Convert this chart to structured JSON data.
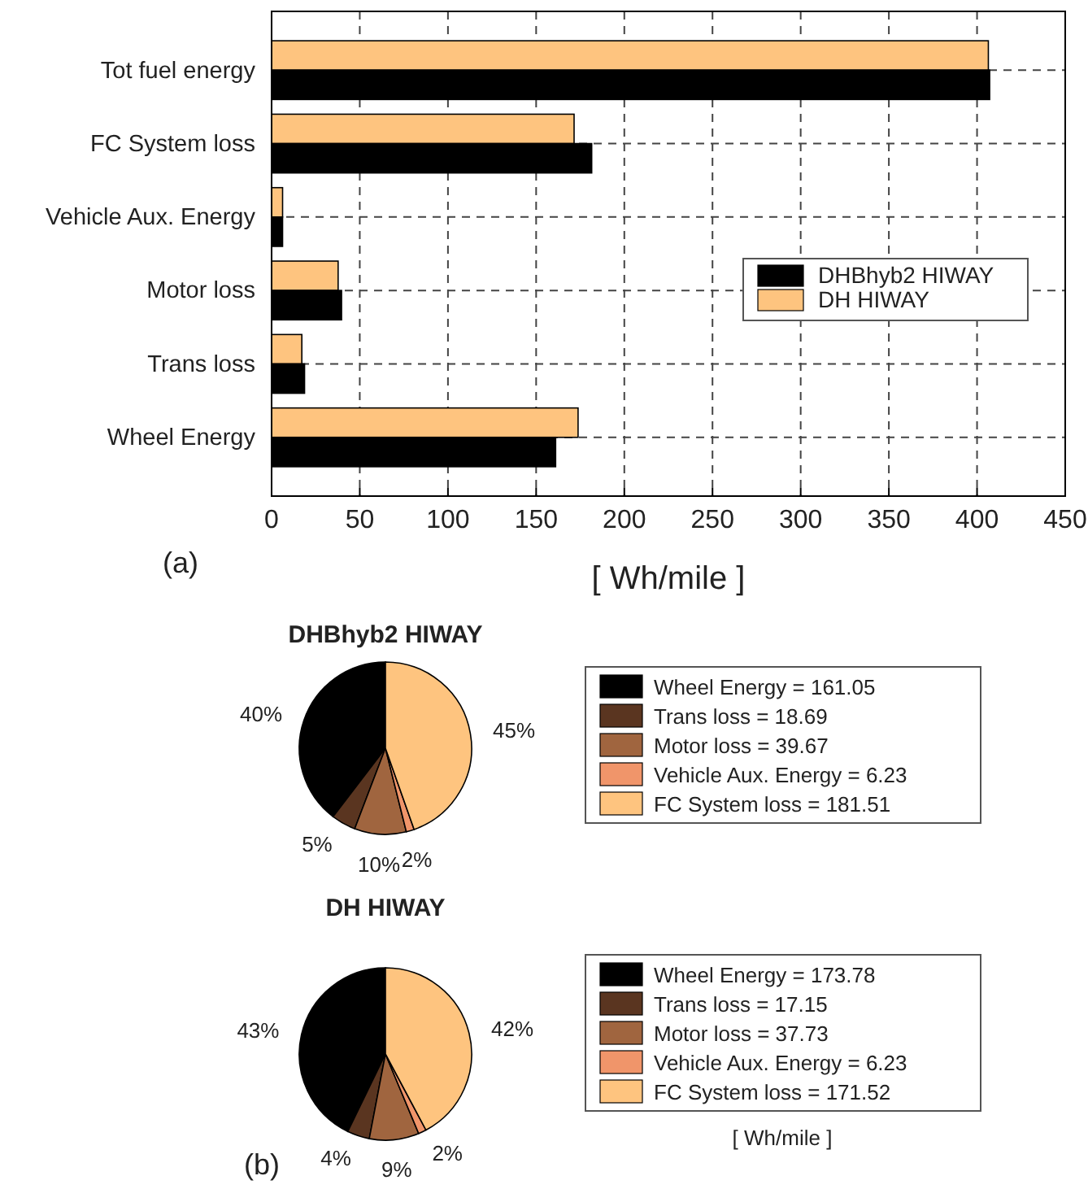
{
  "chart_data": [
    {
      "type": "bar",
      "orientation": "horizontal",
      "categories": [
        "Tot fuel energy",
        "FC System loss",
        "Vehicle Aux. Energy",
        "Motor loss",
        "Trans loss",
        "Wheel Energy"
      ],
      "series": [
        {
          "name": "DH HIWAY",
          "color": "#fec47f",
          "values": [
            406.41,
            171.52,
            6.23,
            37.73,
            17.15,
            173.78
          ]
        },
        {
          "name": "DHBhyb2 HIWAY",
          "color": "#000000",
          "values": [
            407.15,
            181.51,
            6.23,
            39.67,
            18.69,
            161.05
          ]
        }
      ],
      "xlim": [
        0,
        450
      ],
      "xticks": [
        0,
        50,
        100,
        150,
        200,
        250,
        300,
        350,
        400,
        450
      ],
      "xlabel": "[ Wh/mile ]",
      "grid": true,
      "line_style": "dashed",
      "legend": "right",
      "annotations": [
        "(a)"
      ]
    },
    {
      "type": "pie",
      "title": "DHBhyb2 HIWAY",
      "categories": [
        "Wheel Energy = 161.05",
        "Trans loss = 18.69",
        "Motor loss = 39.67",
        "Vehicle Aux. Energy = 6.23",
        "FC System loss = 181.51"
      ],
      "values": [
        39.6,
        4.6,
        9.7,
        1.5,
        44.6
      ],
      "colors": [
        "#000000",
        "#5a3520",
        "#a0653f",
        "#f0956a",
        "#fec47f"
      ],
      "value_labels": [
        "40%",
        "5%",
        "10%",
        "2%",
        "45%"
      ],
      "legend": "right"
    },
    {
      "type": "pie",
      "title": "DH HIWAY",
      "categories": [
        "Wheel Energy = 173.78",
        "Trans loss = 17.15",
        "Motor loss = 37.73",
        "Vehicle Aux. Energy = 6.23",
        "FC System loss = 171.52"
      ],
      "values": [
        42.8,
        4.2,
        9.3,
        1.5,
        42.2
      ],
      "colors": [
        "#000000",
        "#5a3520",
        "#a0653f",
        "#f0956a",
        "#fec47f"
      ],
      "value_labels": [
        "43%",
        "4%",
        "9%",
        "2%",
        "42%"
      ],
      "legend": "right",
      "annotations": [
        "[ Wh/mile ]",
        "(b)"
      ]
    }
  ]
}
